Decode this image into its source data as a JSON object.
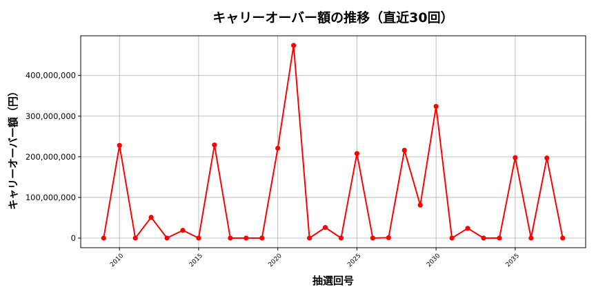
{
  "chart_data": {
    "type": "line",
    "title": "キャリーオーバー額の推移（直近30回）",
    "xlabel": "抽選回号",
    "ylabel": "キャリーオーバー額（円）",
    "x": [
      2009,
      2010,
      2011,
      2012,
      2013,
      2014,
      2015,
      2016,
      2017,
      2018,
      2019,
      2020,
      2021,
      2022,
      2023,
      2024,
      2025,
      2026,
      2027,
      2028,
      2029,
      2030,
      2031,
      2032,
      2033,
      2034,
      2035,
      2036,
      2037,
      2038
    ],
    "series": [
      {
        "values": [
          0,
          228000000,
          0,
          51000000,
          0,
          19000000,
          0,
          229000000,
          0,
          0,
          0,
          221000000,
          474000000,
          0,
          26000000,
          0,
          208000000,
          0,
          1000000,
          216000000,
          81000000,
          324000000,
          0,
          24000000,
          0,
          0,
          198000000,
          0,
          197000000,
          0
        ],
        "color": "#ff0000"
      }
    ],
    "xticks": [
      2010,
      2015,
      2020,
      2025,
      2030,
      2035
    ],
    "xtick_labels": [
      "2010",
      "2015",
      "2020",
      "2025",
      "2030",
      "2035"
    ],
    "yticks": [
      0,
      100000000,
      200000000,
      300000000,
      400000000
    ],
    "ytick_labels": [
      "0",
      "100,000,000",
      "200,000,000",
      "300,000,000",
      "400,000,000"
    ],
    "xlim": [
      2007.55,
      2039.45
    ],
    "ylim": [
      -23700000,
      497700000
    ],
    "grid": true,
    "marker": "circle"
  }
}
